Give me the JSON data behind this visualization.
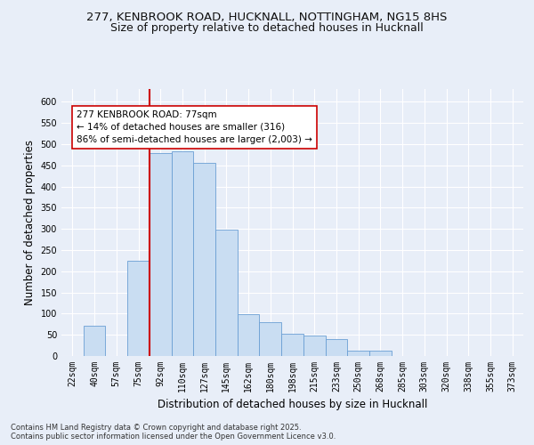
{
  "title_line1": "277, KENBROOK ROAD, HUCKNALL, NOTTINGHAM, NG15 8HS",
  "title_line2": "Size of property relative to detached houses in Hucknall",
  "xlabel": "Distribution of detached houses by size in Hucknall",
  "ylabel": "Number of detached properties",
  "categories": [
    "22sqm",
    "40sqm",
    "57sqm",
    "75sqm",
    "92sqm",
    "110sqm",
    "127sqm",
    "145sqm",
    "162sqm",
    "180sqm",
    "198sqm",
    "215sqm",
    "233sqm",
    "250sqm",
    "268sqm",
    "285sqm",
    "303sqm",
    "320sqm",
    "338sqm",
    "355sqm",
    "373sqm"
  ],
  "values": [
    0,
    72,
    0,
    224,
    478,
    482,
    455,
    298,
    98,
    80,
    53,
    48,
    40,
    12,
    12,
    0,
    0,
    0,
    0,
    0,
    0
  ],
  "bar_color": "#c9ddf2",
  "bar_edge_color": "#6b9fd4",
  "vline_color": "#cc0000",
  "annotation_text": "277 KENBROOK ROAD: 77sqm\n← 14% of detached houses are smaller (316)\n86% of semi-detached houses are larger (2,003) →",
  "annotation_box_color": "#ffffff",
  "annotation_box_edge": "#cc0000",
  "ylim": [
    0,
    630
  ],
  "yticks": [
    0,
    50,
    100,
    150,
    200,
    250,
    300,
    350,
    400,
    450,
    500,
    550,
    600
  ],
  "footnote": "Contains HM Land Registry data © Crown copyright and database right 2025.\nContains public sector information licensed under the Open Government Licence v3.0.",
  "bg_color": "#e8eef8",
  "plot_bg_color": "#e8eef8",
  "grid_color": "#ffffff",
  "title_fontsize": 9.5,
  "subtitle_fontsize": 9,
  "axis_label_fontsize": 8.5,
  "tick_fontsize": 7,
  "annotation_fontsize": 7.5,
  "footnote_fontsize": 6
}
